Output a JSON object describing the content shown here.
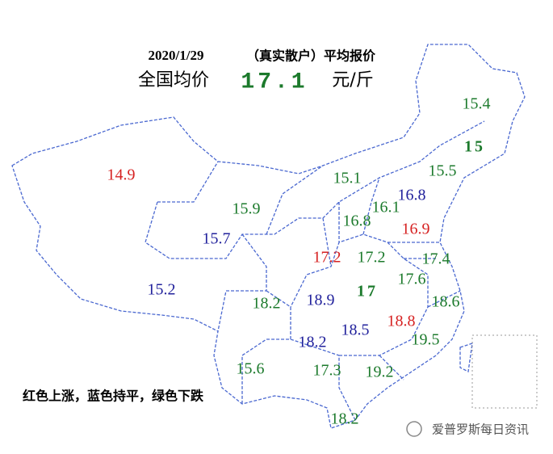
{
  "header": {
    "date": "2020/1/29",
    "subtitle": "（真实散户）平均报价",
    "national_label": "全国均价",
    "national_value": "17.1",
    "unit": "元/斤"
  },
  "labels": [
    {
      "text": "15.4",
      "color": "#1c7a2c"
    },
    {
      "text": "15",
      "color": "#1c7a2c"
    },
    {
      "text": "15.5",
      "color": "#1c7a2c"
    },
    {
      "text": "14.9",
      "color": "#d62222"
    },
    {
      "text": "15.1",
      "color": "#1c7a2c"
    },
    {
      "text": "16.8",
      "color": "#22229c"
    },
    {
      "text": "15.9",
      "color": "#1c7a2c"
    },
    {
      "text": "16.1",
      "color": "#1c7a2c"
    },
    {
      "text": "16.8",
      "color": "#1c7a2c"
    },
    {
      "text": "16.9",
      "color": "#d62222"
    },
    {
      "text": "15.7",
      "color": "#22229c"
    },
    {
      "text": "17.2",
      "color": "#d62222"
    },
    {
      "text": "17.2",
      "color": "#1c7a2c"
    },
    {
      "text": "17.4",
      "color": "#1c7a2c"
    },
    {
      "text": "17.6",
      "color": "#1c7a2c"
    },
    {
      "text": "15.2",
      "color": "#22229c"
    },
    {
      "text": "17",
      "color": "#1c7a2c"
    },
    {
      "text": "18.2",
      "color": "#1c7a2c"
    },
    {
      "text": "18.9",
      "color": "#22229c"
    },
    {
      "text": "18.6",
      "color": "#1c7a2c"
    },
    {
      "text": "18.8",
      "color": "#d62222"
    },
    {
      "text": "18.5",
      "color": "#22229c"
    },
    {
      "text": "19.5",
      "color": "#1c7a2c"
    },
    {
      "text": "18.2",
      "color": "#22229c"
    },
    {
      "text": "15.6",
      "color": "#1c7a2c"
    },
    {
      "text": "17.3",
      "color": "#1c7a2c"
    },
    {
      "text": "19.2",
      "color": "#1c7a2c"
    },
    {
      "text": "18.2",
      "color": "#1c7a2c"
    }
  ],
  "legend": "红色上涨，蓝色持平，绿色下跌",
  "watermark": "爱普罗斯每日资讯"
}
